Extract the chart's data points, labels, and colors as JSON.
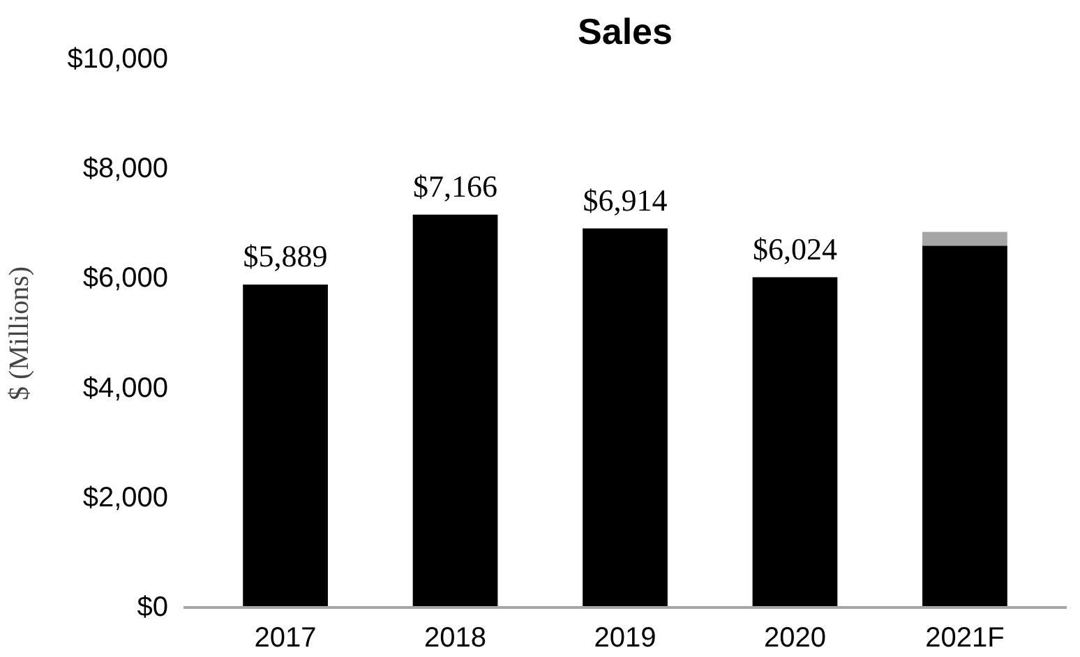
{
  "chart_data": {
    "type": "bar",
    "title": "Sales",
    "ylabel": "$ (Millions)",
    "stacked": true,
    "categories": [
      "2017",
      "2018",
      "2019",
      "2020",
      "2021F"
    ],
    "series": [
      {
        "color": "#000000",
        "values": [
          5889,
          7166,
          6914,
          6024,
          6600
        ],
        "value_labels": [
          "$5,889",
          "$7,166",
          "$6,914",
          "$6,024",
          null
        ]
      },
      {
        "color": "#a6a6a6",
        "values": [
          null,
          null,
          null,
          null,
          250
        ]
      }
    ],
    "ylim": [
      0,
      10000
    ],
    "yticks": [
      {
        "value": 0,
        "label": "$0"
      },
      {
        "value": 2000,
        "label": "$2,000"
      },
      {
        "value": 4000,
        "label": "$4,000"
      },
      {
        "value": 6000,
        "label": "$6,000"
      },
      {
        "value": 8000,
        "label": "$8,000"
      },
      {
        "value": 10000,
        "label": "$10,000"
      }
    ],
    "grid": false
  }
}
